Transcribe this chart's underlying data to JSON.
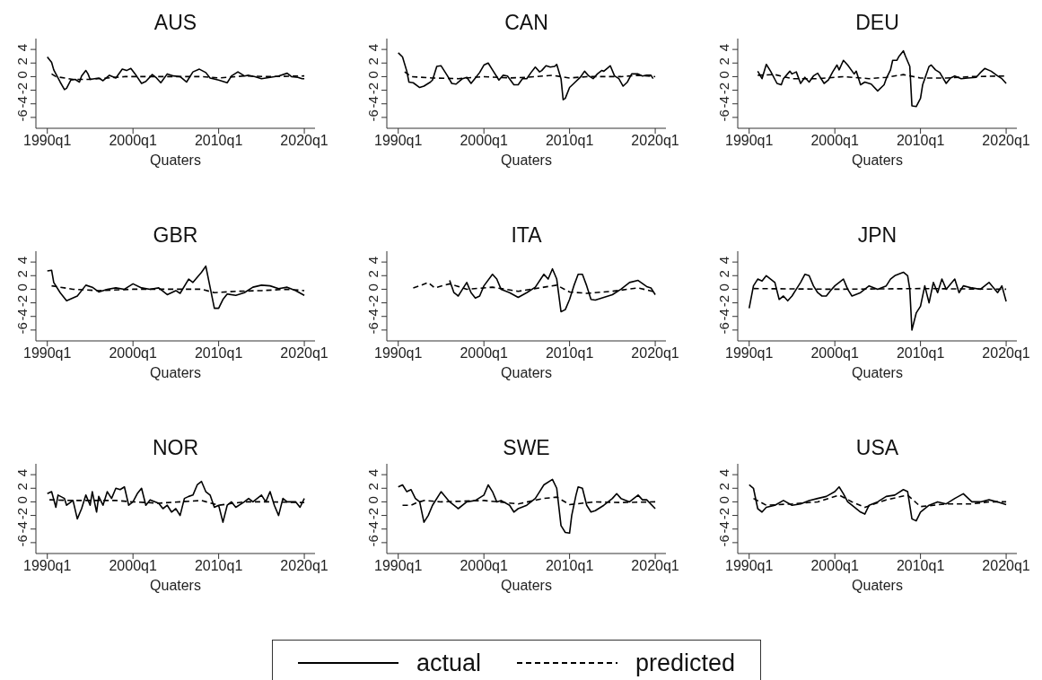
{
  "chart_data": [
    {
      "type": "line",
      "title": "AUS",
      "xlabel": "Quaters",
      "xlim": [
        "1988-09",
        "2021-04"
      ],
      "ylim": [
        -7.6,
        5.6
      ],
      "xticks": [
        {
          "value": "1990-01",
          "label": "1990q1"
        },
        {
          "value": "2000-01",
          "label": "2000q1"
        },
        {
          "value": "2010-01",
          "label": "2010q1"
        },
        {
          "value": "2020-01",
          "label": "2020q1"
        }
      ],
      "yticks": [
        -6,
        -4,
        -2,
        0,
        2,
        4
      ],
      "grid": false,
      "legend": false,
      "series": [
        {
          "color": "#000000",
          "line_style": "solid",
          "x": [
            "1990-01",
            "1990-07",
            "1990-10",
            "1991-07",
            "1992-01",
            "1992-04",
            "1992-10",
            "1993-04",
            "1993-10",
            "1994-01",
            "1994-07",
            "1994-10",
            "1995-01",
            "1996-01",
            "1996-07",
            "1997-04",
            "1998-01",
            "1998-10",
            "1999-04",
            "1999-10",
            "2000-04",
            "2001-01",
            "2001-07",
            "2002-04",
            "2002-10",
            "2003-04",
            "2004-01",
            "2004-10",
            "2005-07",
            "2006-04",
            "2007-01",
            "2007-10",
            "2008-07",
            "2009-01",
            "2010-01",
            "2011-01",
            "2011-07",
            "2012-04",
            "2013-01",
            "2013-07",
            "2014-04",
            "2015-01",
            "2016-01",
            "2017-01",
            "2018-01",
            "2018-07",
            "2019-04",
            "2019-10",
            "2020-01"
          ],
          "values": [
            2.9,
            2.1,
            1.0,
            -0.8,
            -1.9,
            -1.7,
            -0.5,
            -0.4,
            -0.8,
            0.1,
            0.9,
            0.4,
            -0.4,
            -0.2,
            -0.6,
            0.2,
            -0.2,
            1.1,
            0.9,
            1.2,
            0.4,
            -1.0,
            -0.7,
            0.3,
            -0.2,
            -0.9,
            0.4,
            0.1,
            0.0,
            -0.8,
            0.7,
            1.1,
            0.6,
            -0.2,
            -0.5,
            -0.9,
            0.1,
            0.7,
            0.1,
            0.2,
            0.0,
            -0.3,
            -0.1,
            0.1,
            0.5,
            0.0,
            -0.1,
            -0.3,
            -0.3
          ]
        },
        {
          "color": "#000000",
          "line_style": "dashed",
          "x": [
            "1990-07",
            "1991-01",
            "1993-01",
            "1995-01",
            "1997-01",
            "1999-01",
            "2002-01",
            "2005-01",
            "2008-01",
            "2010-01",
            "2013-01",
            "2016-01",
            "2020-01"
          ],
          "values": [
            0.4,
            0.0,
            -0.4,
            -0.4,
            -0.2,
            0.0,
            0.0,
            0.0,
            0.0,
            -0.2,
            0.1,
            0.0,
            0.1
          ]
        }
      ]
    },
    {
      "type": "line",
      "title": "CAN",
      "xlabel": "Quaters",
      "xlim": [
        "1988-09",
        "2021-04"
      ],
      "ylim": [
        -7.6,
        5.6
      ],
      "xticks": [
        {
          "value": "1990-01",
          "label": "1990q1"
        },
        {
          "value": "2000-01",
          "label": "2000q1"
        },
        {
          "value": "2010-01",
          "label": "2010q1"
        },
        {
          "value": "2020-01",
          "label": "2020q1"
        }
      ],
      "yticks": [
        -6,
        -4,
        -2,
        0,
        2,
        4
      ],
      "grid": false,
      "legend": false,
      "series": [
        {
          "color": "#000000",
          "line_style": "solid",
          "x": [
            "1990-01",
            "1990-07",
            "1991-01",
            "1991-04",
            "1991-10",
            "1992-07",
            "1993-01",
            "1993-10",
            "1994-01",
            "1994-07",
            "1995-01",
            "1995-10",
            "1996-04",
            "1996-10",
            "1997-07",
            "1998-01",
            "1998-07",
            "1999-01",
            "1999-07",
            "2000-01",
            "2000-07",
            "2001-01",
            "2001-10",
            "2002-04",
            "2002-10",
            "2003-07",
            "2004-01",
            "2004-07",
            "2005-01",
            "2005-07",
            "2006-01",
            "2006-07",
            "2006-10",
            "2007-04",
            "2007-10",
            "2008-04",
            "2008-07",
            "2009-01",
            "2009-04",
            "2009-07",
            "2010-01",
            "2010-07",
            "2011-04",
            "2011-10",
            "2012-04",
            "2012-10",
            "2013-04",
            "2013-10",
            "2014-01",
            "2014-10",
            "2015-04",
            "2015-10",
            "2016-04",
            "2016-10",
            "2017-04",
            "2018-01",
            "2018-07",
            "2019-01",
            "2019-07",
            "2019-10"
          ],
          "values": [
            3.5,
            2.9,
            0.8,
            -0.8,
            -0.9,
            -1.6,
            -1.4,
            -0.8,
            -0.5,
            1.5,
            1.6,
            0.1,
            -1.0,
            -1.1,
            -0.3,
            -0.1,
            -1.0,
            -0.2,
            0.6,
            1.7,
            2.0,
            1.0,
            -0.5,
            0.2,
            0.1,
            -1.2,
            -1.2,
            -0.3,
            -0.3,
            0.6,
            1.4,
            0.7,
            0.9,
            1.6,
            1.4,
            1.5,
            1.8,
            -0.3,
            -3.4,
            -3.2,
            -1.6,
            -1.0,
            -0.1,
            0.8,
            0.1,
            -0.3,
            0.4,
            0.9,
            0.8,
            1.6,
            0.1,
            -0.3,
            -1.4,
            -0.8,
            0.4,
            0.4,
            0.1,
            0.2,
            0.2,
            -0.3
          ]
        },
        {
          "color": "#000000",
          "line_style": "dashed",
          "x": [
            "1990-10",
            "1991-07",
            "1994-01",
            "1997-01",
            "2000-01",
            "2003-01",
            "2005-01",
            "2008-01",
            "2010-01",
            "2012-01",
            "2016-01",
            "2018-01",
            "2020-01"
          ],
          "values": [
            0.7,
            0.0,
            -0.2,
            -0.3,
            0.0,
            -0.2,
            -0.1,
            0.2,
            -0.2,
            0.0,
            0.0,
            0.2,
            0.0
          ]
        }
      ]
    },
    {
      "type": "line",
      "title": "DEU",
      "xlabel": "Quaters",
      "xlim": [
        "1988-09",
        "2021-04"
      ],
      "ylim": [
        -7.6,
        5.6
      ],
      "xticks": [
        {
          "value": "1990-01",
          "label": "1990q1"
        },
        {
          "value": "2000-01",
          "label": "2000q1"
        },
        {
          "value": "2010-01",
          "label": "2010q1"
        },
        {
          "value": "2020-01",
          "label": "2020q1"
        }
      ],
      "yticks": [
        -6,
        -4,
        -2,
        0,
        2,
        4
      ],
      "grid": false,
      "legend": false,
      "series": [
        {
          "color": "#000000",
          "line_style": "solid",
          "x": [
            "1991-01",
            "1991-07",
            "1992-01",
            "1992-07",
            "1993-04",
            "1993-10",
            "1994-01",
            "1994-10",
            "1995-01",
            "1995-07",
            "1996-01",
            "1996-07",
            "1997-01",
            "1997-07",
            "1998-01",
            "1998-10",
            "1999-04",
            "1999-10",
            "2000-04",
            "2000-07",
            "2001-01",
            "2001-07",
            "2002-04",
            "2002-07",
            "2003-01",
            "2003-07",
            "2004-04",
            "2005-01",
            "2005-10",
            "2006-01",
            "2006-07",
            "2006-10",
            "2007-04",
            "2007-07",
            "2008-01",
            "2008-04",
            "2008-10",
            "2009-01",
            "2009-07",
            "2010-01",
            "2010-04",
            "2010-07",
            "2011-01",
            "2011-04",
            "2011-10",
            "2012-04",
            "2013-01",
            "2013-07",
            "2014-01",
            "2014-10",
            "2015-07",
            "2016-07",
            "2017-01",
            "2017-07",
            "2018-04",
            "2019-01",
            "2019-07",
            "2020-01"
          ],
          "values": [
            0.8,
            -0.3,
            1.8,
            0.8,
            -1.0,
            -1.2,
            -0.3,
            0.8,
            0.4,
            0.7,
            -1.0,
            -0.1,
            -0.8,
            0.1,
            0.5,
            -1.0,
            -0.5,
            0.7,
            1.7,
            1.0,
            2.4,
            1.7,
            0.4,
            0.8,
            -1.2,
            -0.8,
            -1.1,
            -2.1,
            -1.2,
            -0.3,
            1.0,
            2.4,
            2.4,
            3.0,
            3.8,
            3.0,
            1.5,
            -4.3,
            -4.4,
            -3.2,
            -1.2,
            -0.3,
            1.5,
            1.7,
            1.0,
            0.6,
            -1.0,
            -0.2,
            0.1,
            -0.3,
            -0.2,
            -0.1,
            0.6,
            1.2,
            0.8,
            0.1,
            -0.3,
            -1.0
          ]
        },
        {
          "color": "#000000",
          "line_style": "dashed",
          "x": [
            "1991-01",
            "1993-01",
            "1995-01",
            "1998-01",
            "2001-01",
            "2004-01",
            "2006-01",
            "2008-01",
            "2010-01",
            "2013-01",
            "2016-01",
            "2020-01"
          ],
          "values": [
            0.2,
            0.3,
            -0.3,
            -0.3,
            0.0,
            -0.3,
            -0.1,
            0.3,
            -0.2,
            -0.2,
            0.0,
            0.1
          ]
        }
      ]
    },
    {
      "type": "line",
      "title": "GBR",
      "xlabel": "Quaters",
      "xlim": [
        "1988-09",
        "2021-04"
      ],
      "ylim": [
        -7.6,
        5.6
      ],
      "xticks": [
        {
          "value": "1990-01",
          "label": "1990q1"
        },
        {
          "value": "2000-01",
          "label": "2000q1"
        },
        {
          "value": "2010-01",
          "label": "2010q1"
        },
        {
          "value": "2020-01",
          "label": "2020q1"
        }
      ],
      "yticks": [
        -6,
        -4,
        -2,
        0,
        2,
        4
      ],
      "grid": false,
      "legend": false,
      "series": [
        {
          "color": "#000000",
          "line_style": "solid",
          "x": [
            "1990-01",
            "1990-07",
            "1990-10",
            "1991-07",
            "1992-04",
            "1993-07",
            "1994-07",
            "1995-04",
            "1996-01",
            "1997-01",
            "1998-01",
            "1999-01",
            "2000-01",
            "2001-01",
            "2002-01",
            "2003-01",
            "2004-01",
            "2005-01",
            "2005-07",
            "2006-07",
            "2007-01",
            "2008-01",
            "2008-07",
            "2009-01",
            "2009-07",
            "2010-01",
            "2010-07",
            "2011-01",
            "2012-01",
            "2013-01",
            "2014-01",
            "2015-01",
            "2016-01",
            "2017-01",
            "2018-01",
            "2019-01",
            "2020-01"
          ],
          "values": [
            2.7,
            2.8,
            1.0,
            -0.5,
            -1.7,
            -1.0,
            0.6,
            0.3,
            -0.4,
            0.0,
            0.2,
            0.0,
            0.8,
            0.2,
            0.0,
            0.2,
            -0.8,
            -0.2,
            -0.6,
            1.5,
            1.0,
            2.5,
            3.4,
            0.3,
            -2.8,
            -2.8,
            -1.5,
            -0.7,
            -0.9,
            -0.5,
            0.3,
            0.6,
            0.5,
            0.1,
            0.3,
            -0.2,
            -0.9
          ]
        },
        {
          "color": "#000000",
          "line_style": "dashed",
          "x": [
            "1990-07",
            "1993-01",
            "1996-01",
            "2000-01",
            "2005-01",
            "2008-01",
            "2009-07",
            "2012-01",
            "2015-01",
            "2018-01",
            "2020-01"
          ],
          "values": [
            0.5,
            0.0,
            -0.2,
            0.0,
            0.0,
            0.0,
            -0.5,
            -0.3,
            -0.2,
            0.0,
            -0.2
          ]
        }
      ]
    },
    {
      "type": "line",
      "title": "ITA",
      "xlabel": "Quaters",
      "xlim": [
        "1988-09",
        "2021-04"
      ],
      "ylim": [
        -7.6,
        5.6
      ],
      "xticks": [
        {
          "value": "1990-01",
          "label": "1990q1"
        },
        {
          "value": "2000-01",
          "label": "2000q1"
        },
        {
          "value": "2010-01",
          "label": "2010q1"
        },
        {
          "value": "2020-01",
          "label": "2020q1"
        }
      ],
      "yticks": [
        -6,
        -4,
        -2,
        0,
        2,
        4
      ],
      "grid": false,
      "legend": false,
      "series": [
        {
          "color": "#000000",
          "line_style": "solid",
          "x": [
            "1996-01",
            "1996-07",
            "1997-01",
            "1997-07",
            "1998-01",
            "1998-07",
            "1999-01",
            "1999-07",
            "2000-01",
            "2001-01",
            "2001-07",
            "2002-01",
            "2003-01",
            "2004-01",
            "2005-01",
            "2006-01",
            "2007-01",
            "2007-07",
            "2008-01",
            "2008-07",
            "2009-01",
            "2009-07",
            "2010-01",
            "2010-07",
            "2011-01",
            "2011-07",
            "2012-01",
            "2012-07",
            "2013-01",
            "2014-01",
            "2015-01",
            "2016-01",
            "2017-01",
            "2018-01",
            "2019-01",
            "2019-07",
            "2020-01"
          ],
          "values": [
            1.3,
            -0.5,
            -1.0,
            0.0,
            1.0,
            -0.5,
            -1.3,
            -1.0,
            0.5,
            2.2,
            1.5,
            0.0,
            -0.5,
            -1.2,
            -0.5,
            0.3,
            2.2,
            1.5,
            3.0,
            1.5,
            -3.3,
            -3.0,
            -1.5,
            0.5,
            2.2,
            2.2,
            0.5,
            -1.5,
            -1.6,
            -1.2,
            -0.8,
            0.0,
            1.0,
            1.3,
            0.4,
            0.2,
            -0.8
          ]
        },
        {
          "color": "#000000",
          "line_style": "dashed",
          "x": [
            "1991-10",
            "1992-07",
            "1993-07",
            "1994-04",
            "1996-01",
            "1998-01",
            "2001-01",
            "2004-01",
            "2007-01",
            "2008-07",
            "2010-01",
            "2012-01",
            "2015-01",
            "2018-01",
            "2020-01"
          ],
          "values": [
            0.2,
            0.5,
            1.0,
            0.2,
            0.8,
            0.0,
            0.3,
            -0.3,
            0.3,
            0.6,
            -0.4,
            -0.6,
            -0.3,
            0.2,
            -0.4
          ]
        }
      ]
    },
    {
      "type": "line",
      "title": "JPN",
      "xlabel": "Quaters",
      "xlim": [
        "1988-09",
        "2021-04"
      ],
      "ylim": [
        -7.6,
        5.6
      ],
      "xticks": [
        {
          "value": "1990-01",
          "label": "1990q1"
        },
        {
          "value": "2000-01",
          "label": "2000q1"
        },
        {
          "value": "2010-01",
          "label": "2010q1"
        },
        {
          "value": "2020-01",
          "label": "2020q1"
        }
      ],
      "yticks": [
        -6,
        -4,
        -2,
        0,
        2,
        4
      ],
      "grid": false,
      "legend": false,
      "series": [
        {
          "color": "#000000",
          "line_style": "solid",
          "x": [
            "1990-01",
            "1990-07",
            "1991-01",
            "1991-07",
            "1992-01",
            "1993-01",
            "1993-07",
            "1994-01",
            "1994-07",
            "1995-01",
            "1995-07",
            "1996-01",
            "1996-07",
            "1997-01",
            "1997-07",
            "1998-01",
            "1998-07",
            "1999-01",
            "1999-07",
            "2000-01",
            "2001-01",
            "2001-07",
            "2002-01",
            "2003-01",
            "2004-01",
            "2005-01",
            "2006-01",
            "2006-07",
            "2007-01",
            "2008-01",
            "2008-07",
            "2008-10",
            "2009-01",
            "2009-07",
            "2010-01",
            "2010-07",
            "2011-01",
            "2011-07",
            "2012-01",
            "2012-07",
            "2013-01",
            "2014-01",
            "2014-07",
            "2015-01",
            "2016-01",
            "2017-01",
            "2018-01",
            "2019-01",
            "2019-07",
            "2020-01"
          ],
          "values": [
            -2.8,
            0.5,
            1.5,
            1.2,
            2.0,
            1.0,
            -1.5,
            -1.0,
            -1.7,
            -1.0,
            0.0,
            1.0,
            2.2,
            2.0,
            0.5,
            -0.5,
            -1.0,
            -1.0,
            -0.2,
            0.5,
            1.5,
            0.0,
            -1.0,
            -0.5,
            0.5,
            0.0,
            0.5,
            1.5,
            2.0,
            2.5,
            2.0,
            0.0,
            -6.0,
            -3.5,
            -2.5,
            0.5,
            -2.0,
            1.0,
            -0.5,
            1.5,
            0.0,
            1.5,
            -0.5,
            0.5,
            0.2,
            0.0,
            1.0,
            -0.5,
            0.5,
            -1.8
          ]
        },
        {
          "color": "#000000",
          "line_style": "dashed",
          "x": [
            "1990-07",
            "2000-01",
            "2010-01",
            "2020-01"
          ],
          "values": [
            0.1,
            0.0,
            0.1,
            0.0
          ]
        }
      ]
    },
    {
      "type": "line",
      "title": "NOR",
      "xlabel": "Quaters",
      "xlim": [
        "1988-09",
        "2021-04"
      ],
      "ylim": [
        -7.6,
        5.6
      ],
      "xticks": [
        {
          "value": "1990-01",
          "label": "1990q1"
        },
        {
          "value": "2000-01",
          "label": "2000q1"
        },
        {
          "value": "2010-01",
          "label": "2010q1"
        },
        {
          "value": "2020-01",
          "label": "2020q1"
        }
      ],
      "yticks": [
        -6,
        -4,
        -2,
        0,
        2,
        4
      ],
      "grid": false,
      "legend": false,
      "series": [
        {
          "color": "#000000",
          "line_style": "solid",
          "x": [
            "1990-01",
            "1990-07",
            "1991-01",
            "1991-04",
            "1992-01",
            "1992-04",
            "1993-01",
            "1993-07",
            "1994-01",
            "1994-07",
            "1995-01",
            "1995-04",
            "1995-10",
            "1996-01",
            "1996-07",
            "1997-01",
            "1997-07",
            "1998-01",
            "1998-07",
            "1999-01",
            "1999-07",
            "2000-01",
            "2000-07",
            "2001-01",
            "2001-07",
            "2002-01",
            "2003-01",
            "2003-07",
            "2004-01",
            "2004-07",
            "2005-01",
            "2005-07",
            "2006-01",
            "2006-07",
            "2007-01",
            "2007-07",
            "2008-01",
            "2008-07",
            "2009-01",
            "2009-07",
            "2010-01",
            "2010-07",
            "2011-01",
            "2011-07",
            "2012-01",
            "2013-01",
            "2013-07",
            "2014-01",
            "2015-01",
            "2015-07",
            "2016-01",
            "2016-07",
            "2017-01",
            "2017-07",
            "2018-01",
            "2019-01",
            "2019-07",
            "2020-01"
          ],
          "values": [
            1.2,
            1.5,
            -0.8,
            1.0,
            0.5,
            -0.5,
            0.2,
            -2.5,
            -1.0,
            1.0,
            -0.5,
            1.5,
            -1.5,
            0.8,
            -0.5,
            1.5,
            0.5,
            2.0,
            1.8,
            2.2,
            -0.5,
            0.0,
            1.2,
            2.0,
            -0.5,
            0.3,
            -0.2,
            -1.0,
            -0.5,
            -1.5,
            -1.0,
            -2.0,
            0.5,
            0.8,
            1.0,
            2.5,
            3.0,
            1.5,
            1.0,
            -0.8,
            -0.5,
            -3.0,
            -0.5,
            0.0,
            -0.8,
            0.0,
            0.5,
            0.0,
            1.0,
            0.0,
            1.5,
            -0.5,
            -2.0,
            0.5,
            0.0,
            0.0,
            -0.8,
            0.5
          ]
        },
        {
          "color": "#000000",
          "line_style": "dashed",
          "x": [
            "1990-04",
            "1993-01",
            "1998-01",
            "2000-01",
            "2003-01",
            "2008-01",
            "2010-01",
            "2013-01",
            "2016-01",
            "2020-01"
          ],
          "values": [
            0.3,
            0.2,
            0.2,
            0.0,
            -0.2,
            0.2,
            -0.5,
            0.0,
            0.0,
            -0.1
          ]
        }
      ]
    },
    {
      "type": "line",
      "title": "SWE",
      "xlabel": "Quaters",
      "xlim": [
        "1988-09",
        "2021-04"
      ],
      "ylim": [
        -7.6,
        5.6
      ],
      "xticks": [
        {
          "value": "1990-01",
          "label": "1990q1"
        },
        {
          "value": "2000-01",
          "label": "2000q1"
        },
        {
          "value": "2010-01",
          "label": "2010q1"
        },
        {
          "value": "2020-01",
          "label": "2020q1"
        }
      ],
      "yticks": [
        -6,
        -4,
        -2,
        0,
        2,
        4
      ],
      "grid": false,
      "legend": false,
      "series": [
        {
          "color": "#000000",
          "line_style": "solid",
          "x": [
            "1990-01",
            "1990-07",
            "1991-01",
            "1991-07",
            "1992-01",
            "1992-07",
            "1993-01",
            "1993-07",
            "1994-01",
            "1995-01",
            "1996-01",
            "1996-07",
            "1997-01",
            "1998-01",
            "1999-01",
            "2000-01",
            "2000-07",
            "2001-01",
            "2001-07",
            "2002-01",
            "2003-01",
            "2003-07",
            "2004-01",
            "2005-01",
            "2006-01",
            "2006-07",
            "2007-01",
            "2008-01",
            "2008-07",
            "2009-01",
            "2009-07",
            "2010-01",
            "2010-04",
            "2010-10",
            "2011-01",
            "2011-07",
            "2012-01",
            "2012-07",
            "2013-01",
            "2014-01",
            "2015-01",
            "2015-07",
            "2016-01",
            "2017-01",
            "2018-01",
            "2018-07",
            "2019-01",
            "2020-01"
          ],
          "values": [
            2.2,
            2.5,
            1.5,
            1.8,
            0.5,
            0.0,
            -3.0,
            -2.0,
            -0.5,
            1.5,
            0.0,
            -0.5,
            -1.0,
            0.0,
            0.2,
            1.0,
            2.5,
            1.5,
            0.0,
            0.2,
            -0.5,
            -1.5,
            -1.0,
            -0.5,
            0.5,
            1.5,
            2.5,
            3.3,
            2.0,
            -3.5,
            -4.5,
            -4.6,
            -2.0,
            1.0,
            2.2,
            2.0,
            -0.5,
            -1.5,
            -1.3,
            -0.5,
            0.5,
            1.2,
            0.5,
            0.0,
            1.0,
            0.3,
            0.3,
            -1.0
          ]
        },
        {
          "color": "#000000",
          "line_style": "dashed",
          "x": [
            "1990-07",
            "1991-07",
            "1992-01",
            "1993-01",
            "1995-01",
            "2000-01",
            "2004-01",
            "2007-01",
            "2008-07",
            "2010-01",
            "2013-01",
            "2016-01",
            "2020-01"
          ],
          "values": [
            -0.5,
            -0.5,
            -0.2,
            0.2,
            0.0,
            0.2,
            -0.3,
            0.5,
            0.7,
            -0.4,
            0.0,
            -0.1,
            0.0
          ]
        }
      ]
    },
    {
      "type": "line",
      "title": "USA",
      "xlabel": "Quaters",
      "xlim": [
        "1988-09",
        "2021-04"
      ],
      "ylim": [
        -7.6,
        5.6
      ],
      "xticks": [
        {
          "value": "1990-01",
          "label": "1990q1"
        },
        {
          "value": "2000-01",
          "label": "2000q1"
        },
        {
          "value": "2010-01",
          "label": "2010q1"
        },
        {
          "value": "2020-01",
          "label": "2020q1"
        }
      ],
      "yticks": [
        -6,
        -4,
        -2,
        0,
        2,
        4
      ],
      "grid": false,
      "legend": "bottom",
      "series": [
        {
          "name": "actual",
          "color": "#000000",
          "line_style": "solid",
          "x": [
            "1990-01",
            "1990-07",
            "1991-01",
            "1991-07",
            "1992-01",
            "1993-01",
            "1994-01",
            "1995-01",
            "1996-01",
            "1997-01",
            "1998-01",
            "1999-01",
            "2000-01",
            "2000-07",
            "2001-01",
            "2001-07",
            "2002-01",
            "2003-01",
            "2003-07",
            "2004-01",
            "2005-01",
            "2006-01",
            "2007-01",
            "2008-01",
            "2008-07",
            "2009-01",
            "2009-07",
            "2010-01",
            "2011-01",
            "2012-01",
            "2013-01",
            "2014-01",
            "2015-01",
            "2016-01",
            "2017-01",
            "2018-01",
            "2019-01",
            "2020-01"
          ],
          "values": [
            2.5,
            2.0,
            -1.0,
            -1.5,
            -0.8,
            -0.5,
            0.2,
            -0.5,
            -0.3,
            0.2,
            0.5,
            0.8,
            1.5,
            2.2,
            1.2,
            0.0,
            -0.5,
            -1.5,
            -1.8,
            -0.5,
            0.0,
            0.8,
            1.0,
            1.8,
            1.5,
            -2.5,
            -2.8,
            -1.5,
            -0.5,
            0.0,
            -0.3,
            0.5,
            1.2,
            0.0,
            0.0,
            0.3,
            0.0,
            -0.4
          ]
        },
        {
          "name": "predicted",
          "color": "#000000",
          "line_style": "dashed",
          "x": [
            "1990-07",
            "1992-01",
            "1995-01",
            "1998-01",
            "2000-07",
            "2002-01",
            "2003-07",
            "2006-01",
            "2008-07",
            "2010-01",
            "2013-01",
            "2016-01",
            "2018-01",
            "2020-01"
          ],
          "values": [
            0.5,
            -0.5,
            -0.3,
            0.0,
            1.0,
            0.0,
            -0.8,
            0.3,
            1.0,
            -0.7,
            -0.3,
            -0.3,
            0.0,
            0.0
          ]
        }
      ]
    }
  ]
}
